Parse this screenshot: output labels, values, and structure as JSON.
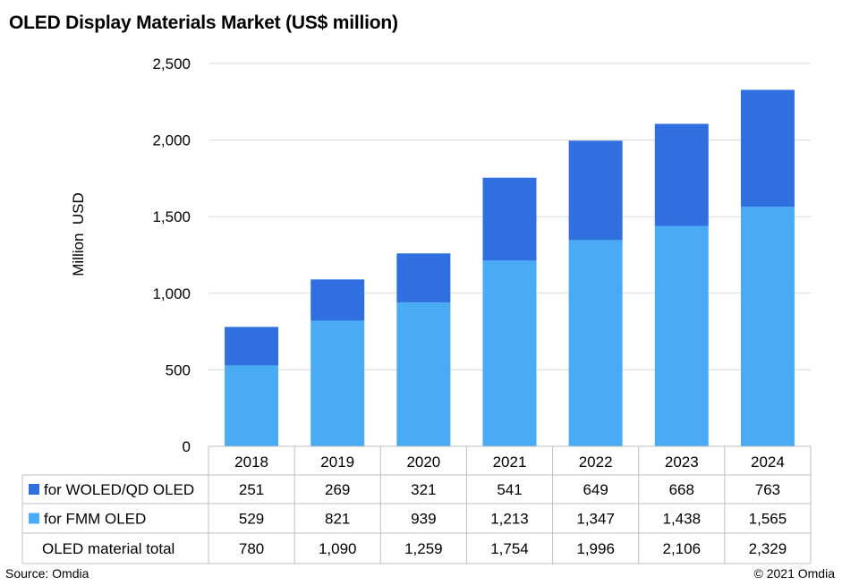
{
  "chart_data": {
    "type": "bar",
    "stacked": true,
    "title": "OLED Display Materials Market  (US$ million)",
    "ylabel": "Million  USD",
    "xlabel": "",
    "ylim": [
      0,
      2500
    ],
    "yticks": [
      "0",
      "500",
      "1,000",
      "1,500",
      "2,000",
      "2,500"
    ],
    "ytick_values": [
      0,
      500,
      1000,
      1500,
      2000,
      2500
    ],
    "grid": true,
    "categories": [
      "2018",
      "2019",
      "2020",
      "2021",
      "2022",
      "2023",
      "2024"
    ],
    "series": [
      {
        "name": "for FMM OLED",
        "color": "#4aabf5",
        "values": [
          529,
          821,
          939,
          1213,
          1347,
          1438,
          1565
        ],
        "labels": [
          "529",
          "821",
          "939",
          "1,213",
          "1,347",
          "1,438",
          "1,565"
        ]
      },
      {
        "name": "for WOLED/QD OLED",
        "color": "#2f6fe0",
        "values": [
          251,
          269,
          321,
          541,
          649,
          668,
          763
        ],
        "labels": [
          "251",
          "269",
          "321",
          "541",
          "649",
          "668",
          "763"
        ]
      }
    ],
    "total_label": "OLED material total",
    "totals": [
      "780",
      "1,090",
      "1,259",
      "1,754",
      "1,996",
      "2,106",
      "2,329"
    ],
    "table_row_order": [
      "for WOLED/QD OLED",
      "for FMM OLED"
    ]
  },
  "footer": {
    "source": "Source: Omdia",
    "copyright": "© 2021 Omdia"
  }
}
